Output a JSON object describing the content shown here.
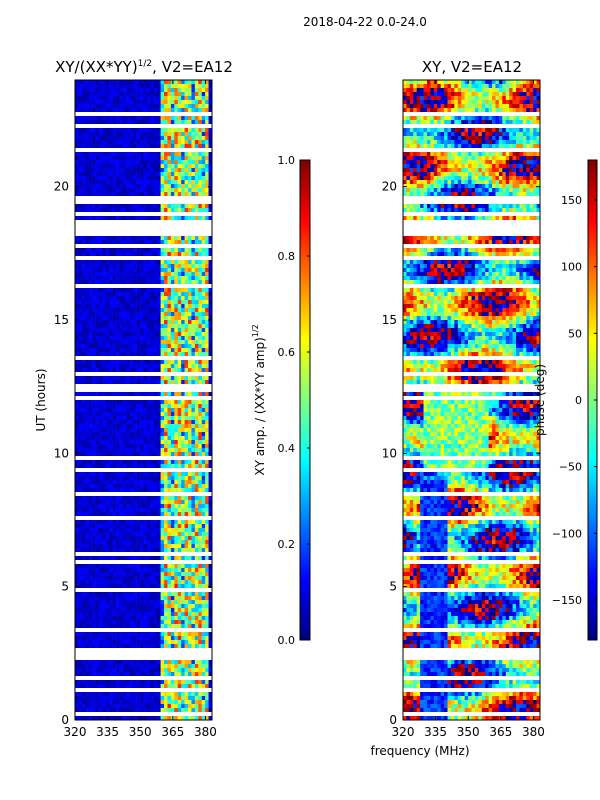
{
  "suptitle": "2018-04-22 0.0-24.0",
  "colors": {
    "jet": [
      "#00007f",
      "#0000ff",
      "#007fff",
      "#00ffff",
      "#7fff7f",
      "#ffff00",
      "#ff7f00",
      "#ff0000",
      "#7f0000"
    ],
    "gap": "#ffffff",
    "axis": "#000000"
  },
  "chart_data": [
    {
      "type": "heatmap",
      "title_main": "XY/(XX*YY)",
      "title_sup": "1/2",
      "title_tail": ", V2=EA12",
      "ylabel": "UT (hours)",
      "xlabel": "",
      "x_range_mhz": [
        320,
        383
      ],
      "y_range_hours": [
        0,
        24
      ],
      "x_ticks": [
        320,
        335,
        350,
        365,
        380
      ],
      "y_ticks": [
        0,
        5,
        10,
        15,
        20
      ],
      "x_tick_labels": [
        "320",
        "335",
        "350",
        "365",
        "380"
      ],
      "y_tick_labels": [
        "0",
        "5",
        "10",
        "15",
        "20"
      ],
      "value_range": [
        0.0,
        1.0
      ],
      "description_of_pattern": "low amplitude (~0.05) everywhere except bright channels between ~360 and ~382 MHz (0.3-0.9)",
      "bright_band_mhz": [
        360,
        382
      ],
      "colorbar": {
        "label_main": "XY amp. / (XX*YY amp)",
        "label_sup": "1/2",
        "range": [
          0.0,
          1.0
        ],
        "ticks": [
          0.0,
          0.2,
          0.4,
          0.6,
          0.8,
          1.0
        ],
        "tick_labels": [
          "0.0",
          "0.2",
          "0.4",
          "0.6",
          "0.8",
          "1.0"
        ]
      }
    },
    {
      "type": "heatmap",
      "title_main": "XY, V2=EA12",
      "ylabel": "",
      "xlabel": "frequency (MHz)",
      "x_range_mhz": [
        320,
        383
      ],
      "y_range_hours": [
        0,
        24
      ],
      "x_ticks": [
        320,
        335,
        350,
        365,
        380
      ],
      "y_ticks": [
        0,
        5,
        10,
        15,
        20
      ],
      "x_tick_labels": [
        "320",
        "335",
        "350",
        "365",
        "380"
      ],
      "y_tick_labels": [
        "0",
        "5",
        "10",
        "15",
        "20"
      ],
      "value_range": [
        -180,
        180
      ],
      "description_of_pattern": "XY phase in degrees, noisy with frequency-dependent bands",
      "colorbar": {
        "label": "phase (deg)",
        "range": [
          -180,
          180
        ],
        "ticks": [
          -150,
          -100,
          -50,
          0,
          50,
          100,
          150
        ],
        "tick_labels": [
          "−150",
          "−100",
          "−50",
          "0",
          "50",
          "100",
          "150"
        ]
      }
    }
  ],
  "flagged_gaps_hours": [
    [
      0.15,
      0.35
    ],
    [
      1.0,
      1.15
    ],
    [
      1.45,
      1.6
    ],
    [
      2.3,
      2.7
    ],
    [
      3.35,
      3.45
    ],
    [
      4.75,
      4.95
    ],
    [
      5.9,
      6.0
    ],
    [
      6.15,
      6.25
    ],
    [
      7.55,
      7.65
    ],
    [
      8.4,
      8.5
    ],
    [
      9.3,
      9.45
    ],
    [
      9.7,
      9.85
    ],
    [
      11.95,
      12.15
    ],
    [
      12.3,
      12.55
    ],
    [
      12.85,
      13.0
    ],
    [
      13.45,
      13.6
    ],
    [
      16.15,
      16.3
    ],
    [
      17.2,
      17.35
    ],
    [
      17.75,
      17.85
    ],
    [
      18.15,
      18.75
    ],
    [
      18.95,
      19.05
    ],
    [
      19.4,
      19.6
    ],
    [
      21.3,
      21.5
    ],
    [
      22.25,
      22.35
    ],
    [
      22.7,
      22.8
    ],
    [
      23.05,
      23.15
    ],
    [
      23.5,
      23.6
    ]
  ]
}
